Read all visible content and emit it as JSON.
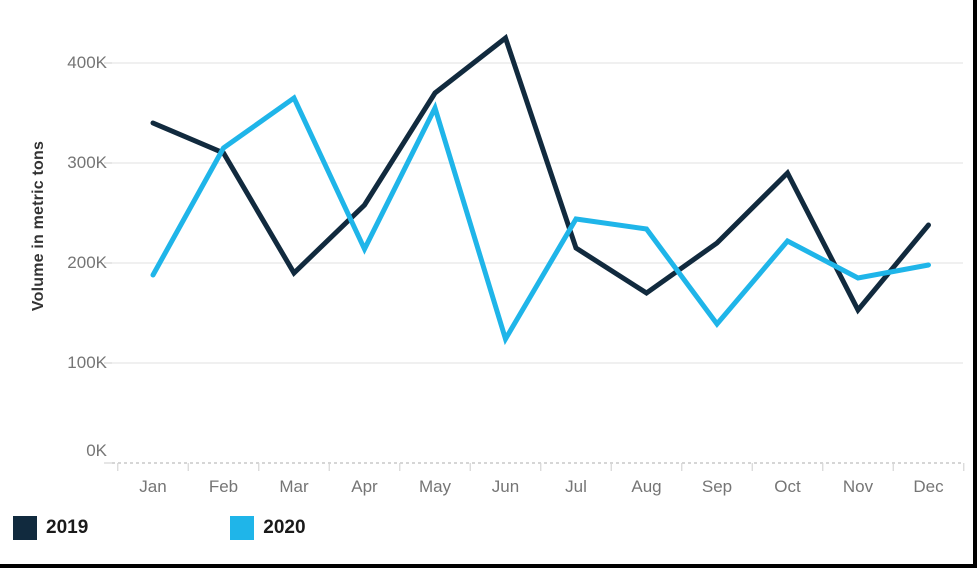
{
  "frame": {
    "background": "#ffffff",
    "partial_border_color": "#000000"
  },
  "chart_data": {
    "type": "line",
    "title": "",
    "xlabel": "",
    "ylabel": "Volume in metric tons",
    "categories": [
      "Jan",
      "Feb",
      "Mar",
      "Apr",
      "May",
      "Jun",
      "Jul",
      "Aug",
      "Sep",
      "Oct",
      "Nov",
      "Dec"
    ],
    "series": [
      {
        "name": "2019",
        "color": "#112A3E",
        "values_k_metric_tons": [
          340,
          310,
          190,
          258,
          370,
          425,
          215,
          170,
          220,
          290,
          153,
          238
        ]
      },
      {
        "name": "2020",
        "color": "#1FB5E9",
        "values_k_metric_tons": [
          188,
          315,
          365,
          214,
          355,
          124,
          244,
          234,
          139,
          222,
          185,
          198
        ]
      }
    ],
    "yticks": [
      {
        "label": "400K",
        "value": 400
      },
      {
        "label": "300K",
        "value": 300
      },
      {
        "label": "200K",
        "value": 200
      },
      {
        "label": "100K",
        "value": 100
      },
      {
        "label": "0K",
        "value": 0
      }
    ],
    "ylim": [
      0,
      440
    ],
    "grid": "horizontal",
    "legend_position": "bottom-left",
    "colors": {
      "gridline": "#ececec",
      "zero_line_dashed": "#c8c8c8",
      "axis_tick_mark": "#d6d6d6",
      "tick_text": "#757575",
      "axis_title_text": "#333333"
    }
  }
}
